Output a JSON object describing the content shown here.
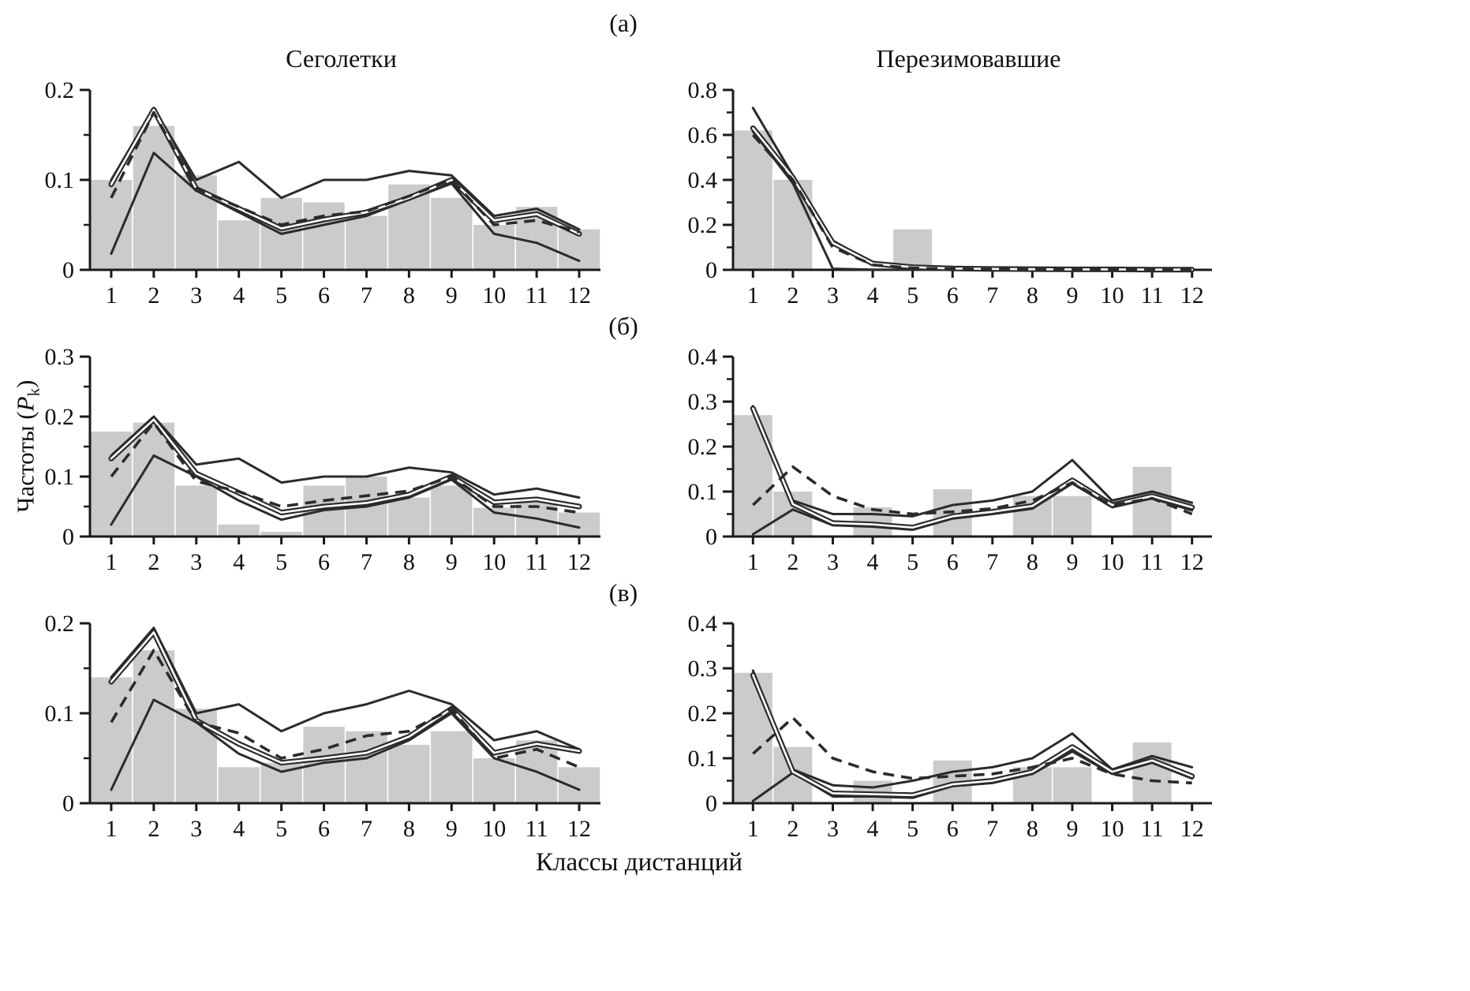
{
  "figure": {
    "panel_labels": {
      "a": "(а)",
      "b": "(б)",
      "v": "(в)"
    },
    "column_titles": {
      "left": "Сеголетки",
      "right": "Перезимовавшие"
    },
    "x_axis_label": "Классы дистанций",
    "y_axis_label": {
      "prefix": "Частоты (",
      "symbol": "P",
      "subscript": "k",
      "suffix": ")"
    }
  },
  "style": {
    "bar_color": "#cbcbcb",
    "line_color": "#2b2b2b",
    "axis_color": "#1a1a1a",
    "background": "#ffffff"
  },
  "chart_data": [
    {
      "panel": "(а)",
      "title": "Сеголетки",
      "type": "bar",
      "categories": [
        "1",
        "2",
        "3",
        "4",
        "5",
        "6",
        "7",
        "8",
        "9",
        "10",
        "11",
        "12"
      ],
      "xlabel": "Классы дистанций",
      "ylabel": "Частоты (Pk)",
      "ylim": [
        0,
        0.2
      ],
      "yticks": [
        0,
        0.1,
        0.2
      ],
      "grid": false,
      "legend": false,
      "bars": [
        0.1,
        0.16,
        0.105,
        0.055,
        0.08,
        0.075,
        0.06,
        0.095,
        0.08,
        0.05,
        0.07,
        0.045
      ],
      "series": [
        {
          "name": "upper-solid-line",
          "style": "solid",
          "values": [
            0.1,
            0.18,
            0.1,
            0.12,
            0.08,
            0.1,
            0.1,
            0.11,
            0.105,
            0.06,
            0.068,
            0.045
          ]
        },
        {
          "name": "lower-solid-line",
          "style": "solid",
          "values": [
            0.018,
            0.13,
            0.088,
            0.064,
            0.04,
            0.05,
            0.06,
            0.078,
            0.096,
            0.04,
            0.03,
            0.01
          ]
        },
        {
          "name": "main-solid-line",
          "style": "tube",
          "values": [
            0.095,
            0.178,
            0.09,
            0.068,
            0.046,
            0.056,
            0.064,
            0.08,
            0.1,
            0.055,
            0.062,
            0.04
          ]
        },
        {
          "name": "dashed-line",
          "style": "dashed",
          "values": [
            0.08,
            0.175,
            0.09,
            0.07,
            0.05,
            0.06,
            0.065,
            0.082,
            0.1,
            0.05,
            0.055,
            0.042
          ]
        }
      ]
    },
    {
      "panel": "(а)",
      "title": "Перезимовавшие",
      "type": "bar",
      "categories": [
        "1",
        "2",
        "3",
        "4",
        "5",
        "6",
        "7",
        "8",
        "9",
        "10",
        "11",
        "12"
      ],
      "xlabel": "Классы дистанций",
      "ylabel": "Частоты (Pk)",
      "ylim": [
        0,
        0.8
      ],
      "yticks": [
        0,
        0.2,
        0.4,
        0.6,
        0.8
      ],
      "grid": false,
      "legend": false,
      "bars": [
        0.62,
        0.4,
        0,
        0,
        0.18,
        0,
        0,
        0,
        0,
        0,
        0,
        0
      ],
      "series": [
        {
          "name": "upper-solid-line",
          "style": "solid",
          "values": [
            0.72,
            0.42,
            0.13,
            0.03,
            0.015,
            0.008,
            0.005,
            0.004,
            0.003,
            0.002,
            0.002,
            0.001
          ]
        },
        {
          "name": "lower-solid-line",
          "style": "solid",
          "values": [
            0.615,
            0.385,
            0.005,
            0.001,
            0,
            0,
            0,
            0,
            0,
            0,
            0,
            0
          ]
        },
        {
          "name": "main-solid-line",
          "style": "tube",
          "values": [
            0.63,
            0.41,
            0.12,
            0.028,
            0.012,
            0.006,
            0.004,
            0.003,
            0.002,
            0.002,
            0.001,
            0.001
          ]
        },
        {
          "name": "dashed-line",
          "style": "dashed",
          "values": [
            0.6,
            0.4,
            0.1,
            0.022,
            0.008,
            0.004,
            0.003,
            0.002,
            0.002,
            0.001,
            0.001,
            0.001
          ]
        }
      ]
    },
    {
      "panel": "(б)",
      "title": "Сеголетки",
      "type": "bar",
      "categories": [
        "1",
        "2",
        "3",
        "4",
        "5",
        "6",
        "7",
        "8",
        "9",
        "10",
        "11",
        "12"
      ],
      "xlabel": "Классы дистанций",
      "ylabel": "Частоты (Pk)",
      "ylim": [
        0,
        0.3
      ],
      "yticks": [
        0,
        0.1,
        0.2,
        0.3
      ],
      "grid": false,
      "legend": false,
      "bars": [
        0.175,
        0.19,
        0.085,
        0.02,
        0.008,
        0.085,
        0.1,
        0.065,
        0.085,
        0.048,
        0.06,
        0.04
      ],
      "series": [
        {
          "name": "upper-solid-line",
          "style": "solid",
          "values": [
            0.135,
            0.2,
            0.12,
            0.13,
            0.09,
            0.1,
            0.1,
            0.115,
            0.107,
            0.07,
            0.08,
            0.065
          ]
        },
        {
          "name": "lower-solid-line",
          "style": "solid",
          "values": [
            0.02,
            0.135,
            0.1,
            0.06,
            0.028,
            0.044,
            0.05,
            0.065,
            0.095,
            0.04,
            0.03,
            0.015
          ]
        },
        {
          "name": "main-solid-line",
          "style": "tube",
          "values": [
            0.13,
            0.195,
            0.105,
            0.073,
            0.04,
            0.05,
            0.056,
            0.07,
            0.1,
            0.057,
            0.062,
            0.05
          ]
        },
        {
          "name": "dashed-line",
          "style": "dashed",
          "values": [
            0.1,
            0.19,
            0.092,
            0.075,
            0.05,
            0.06,
            0.068,
            0.076,
            0.1,
            0.05,
            0.05,
            0.04
          ]
        }
      ]
    },
    {
      "panel": "(б)",
      "title": "Перезимовавшие",
      "type": "bar",
      "categories": [
        "1",
        "2",
        "3",
        "4",
        "5",
        "6",
        "7",
        "8",
        "9",
        "10",
        "11",
        "12"
      ],
      "xlabel": "Классы дистанций",
      "ylabel": "Частоты (Pk)",
      "ylim": [
        0,
        0.4
      ],
      "yticks": [
        0,
        0.1,
        0.2,
        0.3,
        0.4
      ],
      "grid": false,
      "legend": false,
      "bars": [
        0.27,
        0.1,
        0,
        0.065,
        0,
        0.105,
        0,
        0.09,
        0.09,
        0,
        0.155,
        0
      ],
      "series": [
        {
          "name": "upper-solid-line",
          "style": "solid",
          "values": [
            0.29,
            0.08,
            0.05,
            0.05,
            0.045,
            0.07,
            0.08,
            0.1,
            0.17,
            0.08,
            0.1,
            0.075
          ]
        },
        {
          "name": "lower-solid-line",
          "style": "solid",
          "values": [
            0.005,
            0.06,
            0.025,
            0.022,
            0.015,
            0.04,
            0.05,
            0.062,
            0.118,
            0.065,
            0.085,
            0.058
          ]
        },
        {
          "name": "main-solid-line",
          "style": "tube",
          "values": [
            0.285,
            0.072,
            0.03,
            0.027,
            0.02,
            0.045,
            0.055,
            0.068,
            0.125,
            0.07,
            0.09,
            0.065
          ]
        },
        {
          "name": "dashed-line",
          "style": "dashed",
          "values": [
            0.07,
            0.155,
            0.09,
            0.06,
            0.05,
            0.055,
            0.062,
            0.08,
            0.12,
            0.07,
            0.085,
            0.05
          ]
        }
      ]
    },
    {
      "panel": "(в)",
      "title": "Сеголетки",
      "type": "bar",
      "categories": [
        "1",
        "2",
        "3",
        "4",
        "5",
        "6",
        "7",
        "8",
        "9",
        "10",
        "11",
        "12"
      ],
      "xlabel": "Классы дистанций",
      "ylabel": "Частоты (Pk)",
      "ylim": [
        0,
        0.2
      ],
      "yticks": [
        0,
        0.1,
        0.2
      ],
      "grid": false,
      "legend": false,
      "bars": [
        0.14,
        0.17,
        0.105,
        0.04,
        0.045,
        0.085,
        0.08,
        0.065,
        0.08,
        0.05,
        0.07,
        0.04
      ],
      "series": [
        {
          "name": "upper-solid-line",
          "style": "solid",
          "values": [
            0.14,
            0.195,
            0.1,
            0.11,
            0.08,
            0.1,
            0.11,
            0.125,
            0.11,
            0.07,
            0.08,
            0.06
          ]
        },
        {
          "name": "lower-solid-line",
          "style": "solid",
          "values": [
            0.015,
            0.115,
            0.09,
            0.055,
            0.035,
            0.045,
            0.05,
            0.07,
            0.1,
            0.05,
            0.035,
            0.015
          ]
        },
        {
          "name": "main-solid-line",
          "style": "tube",
          "values": [
            0.135,
            0.19,
            0.092,
            0.066,
            0.045,
            0.05,
            0.056,
            0.074,
            0.105,
            0.056,
            0.066,
            0.058
          ]
        },
        {
          "name": "dashed-line",
          "style": "dashed",
          "values": [
            0.09,
            0.17,
            0.09,
            0.078,
            0.05,
            0.06,
            0.075,
            0.08,
            0.105,
            0.05,
            0.06,
            0.04
          ]
        }
      ]
    },
    {
      "panel": "(в)",
      "title": "Перезимовавшие",
      "type": "bar",
      "categories": [
        "1",
        "2",
        "3",
        "4",
        "5",
        "6",
        "7",
        "8",
        "9",
        "10",
        "11",
        "12"
      ],
      "xlabel": "Классы дистанций",
      "ylabel": "Частоты (Pk)",
      "ylim": [
        0,
        0.4
      ],
      "yticks": [
        0,
        0.1,
        0.2,
        0.3,
        0.4
      ],
      "grid": false,
      "legend": false,
      "bars": [
        0.29,
        0.125,
        0,
        0.05,
        0,
        0.095,
        0,
        0.08,
        0.08,
        0,
        0.135,
        0
      ],
      "series": [
        {
          "name": "upper-solid-line",
          "style": "solid",
          "values": [
            0.295,
            0.075,
            0.04,
            0.035,
            0.05,
            0.07,
            0.08,
            0.1,
            0.155,
            0.075,
            0.105,
            0.08
          ]
        },
        {
          "name": "lower-solid-line",
          "style": "solid",
          "values": [
            0.005,
            0.068,
            0.015,
            0.015,
            0.012,
            0.038,
            0.045,
            0.065,
            0.115,
            0.065,
            0.09,
            0.055
          ]
        },
        {
          "name": "main-solid-line",
          "style": "tube",
          "values": [
            0.285,
            0.07,
            0.022,
            0.02,
            0.018,
            0.042,
            0.05,
            0.07,
            0.125,
            0.07,
            0.095,
            0.06
          ]
        },
        {
          "name": "dashed-line",
          "style": "dashed",
          "values": [
            0.11,
            0.19,
            0.1,
            0.07,
            0.055,
            0.06,
            0.065,
            0.08,
            0.1,
            0.065,
            0.05,
            0.045
          ]
        }
      ]
    }
  ]
}
